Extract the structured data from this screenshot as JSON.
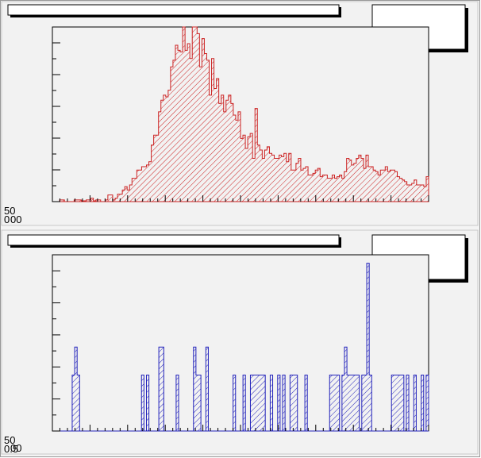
{
  "colors": {
    "hist_top": "#cc2222",
    "hist_bottom": "#2222bb",
    "pad_bg": "#f2f2f2",
    "frame_bg": "#f4f4f4"
  },
  "chart_data": [
    {
      "type": "bar",
      "title": "",
      "xlabel": "",
      "ylabel": "",
      "grid": false,
      "legend": "top-right",
      "fill": "hatched",
      "axis_texts": [
        "0",
        "00",
        "50"
      ],
      "ylim": [
        0,
        210
      ],
      "values": [
        0,
        0,
        0,
        2,
        2,
        0,
        0,
        0,
        0,
        2,
        2,
        2,
        1,
        1,
        2,
        2,
        4,
        1,
        2,
        2,
        0,
        0,
        2,
        8,
        8,
        2,
        4,
        9,
        9,
        14,
        18,
        14,
        20,
        28,
        28,
        38,
        38,
        42,
        42,
        44,
        48,
        68,
        80,
        80,
        108,
        122,
        128,
        126,
        134,
        162,
        170,
        188,
        182,
        180,
        210,
        182,
        190,
        172,
        210,
        210,
        202,
        162,
        196,
        178,
        170,
        128,
        172,
        136,
        148,
        118,
        128,
        108,
        122,
        128,
        118,
        104,
        98,
        108,
        76,
        80,
        64,
        78,
        82,
        52,
        112,
        68,
        62,
        52,
        62,
        66,
        58,
        56,
        52,
        52,
        56,
        54,
        58,
        48,
        58,
        38,
        38,
        46,
        52,
        38,
        40,
        42,
        32,
        32,
        34,
        38,
        40,
        30,
        32,
        32,
        28,
        28,
        32,
        28,
        30,
        32,
        28,
        36,
        52,
        50,
        44,
        46,
        52,
        56,
        52,
        40,
        56,
        42,
        42,
        38,
        36,
        32,
        38,
        38,
        42,
        36,
        38,
        38,
        36,
        30,
        28,
        26,
        24,
        20,
        20,
        22,
        26,
        20,
        20,
        20,
        18,
        30
      ]
    },
    {
      "type": "bar",
      "title": "",
      "xlabel": "",
      "ylabel": "",
      "grid": false,
      "legend": "top-right",
      "fill": "hatched",
      "axis_texts": [
        "0.5",
        "00",
        "50"
      ],
      "ylim": [
        0,
        6.3
      ],
      "values": [
        0,
        0,
        0,
        0,
        0,
        0,
        0,
        0,
        2,
        3,
        2,
        0,
        0,
        0,
        0,
        0,
        0,
        0,
        0,
        0,
        0,
        0,
        0,
        0,
        0,
        0,
        0,
        0,
        0,
        0,
        0,
        0,
        0,
        0,
        0,
        0,
        2,
        0,
        2,
        0,
        0,
        0,
        0,
        3,
        3,
        0,
        0,
        0,
        0,
        0,
        2,
        0,
        0,
        0,
        0,
        0,
        0,
        3,
        2,
        2,
        0,
        0,
        3,
        0,
        0,
        0,
        0,
        0,
        0,
        0,
        0,
        0,
        0,
        2,
        0,
        0,
        0,
        2,
        0,
        0,
        2,
        2,
        2,
        2,
        2,
        2,
        0,
        0,
        2,
        0,
        0,
        2,
        0,
        2,
        0,
        0,
        2,
        2,
        2,
        0,
        0,
        0,
        2,
        0,
        0,
        0,
        0,
        0,
        0,
        0,
        0,
        0,
        2,
        2,
        2,
        2,
        0,
        2,
        3,
        2,
        2,
        2,
        2,
        2,
        0,
        2,
        2,
        6,
        2,
        0,
        0,
        0,
        0,
        0,
        0,
        0,
        0,
        2,
        2,
        2,
        2,
        2,
        0,
        2,
        0,
        0,
        2,
        0,
        0,
        2,
        0,
        2
      ]
    }
  ]
}
